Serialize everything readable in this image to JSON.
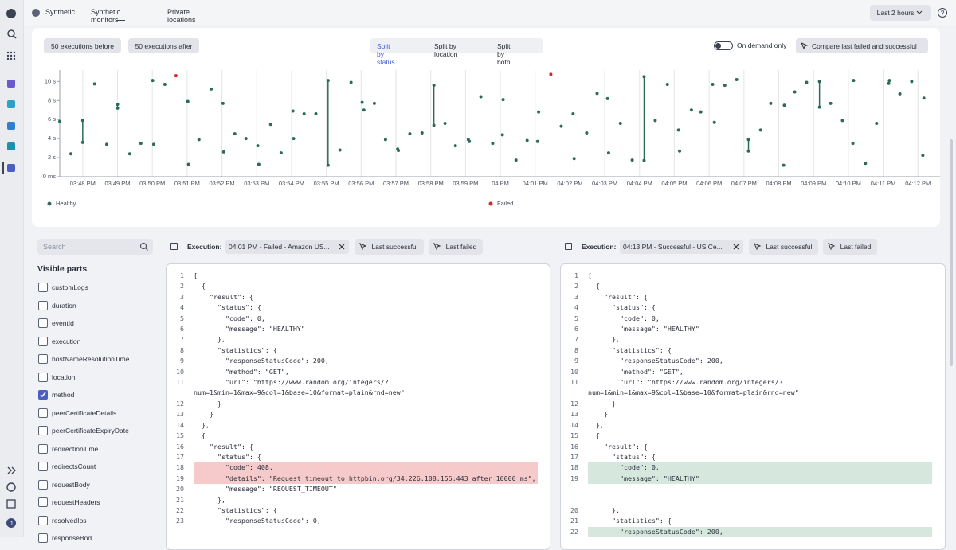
{
  "nav": {
    "tabs": [
      "Synthetic",
      "Synthetic monitors",
      "Private locations"
    ],
    "active_tab": 1,
    "timeframe": "Last 2 hours",
    "help": "?",
    "user_initial": "J"
  },
  "toolbar": {
    "before": "50 executions before",
    "after": "50 executions after",
    "split": [
      "Split by status",
      "Split by location",
      "Split by both"
    ],
    "active_split": 0,
    "toggle": "On demand only",
    "toggle_on": false,
    "compare": "Compare last failed and successful"
  },
  "chart_data": {
    "type": "scatter",
    "legend": "bottom",
    "grid": "x",
    "xlim": [
      47.34,
      72.2
    ],
    "xticks": [
      {
        "value": 48,
        "label": "03:48 PM"
      },
      {
        "value": 49,
        "label": "03:49 PM"
      },
      {
        "value": 50,
        "label": "03:50 PM"
      },
      {
        "value": 51,
        "label": "03:51 PM"
      },
      {
        "value": 52,
        "label": "03:52 PM"
      },
      {
        "value": 53,
        "label": "03:53 PM"
      },
      {
        "value": 54,
        "label": "03:54 PM"
      },
      {
        "value": 55,
        "label": "03:55 PM"
      },
      {
        "value": 56,
        "label": "03:56 PM"
      },
      {
        "value": 57,
        "label": "03:57 PM"
      },
      {
        "value": 58,
        "label": "03:58 PM"
      },
      {
        "value": 59,
        "label": "03:59 PM"
      },
      {
        "value": 60,
        "label": "04 PM"
      },
      {
        "value": 61,
        "label": "04:01 PM"
      },
      {
        "value": 62,
        "label": "04:02 PM"
      },
      {
        "value": 63,
        "label": "04:03 PM"
      },
      {
        "value": 64,
        "label": "04:04 PM"
      },
      {
        "value": 65,
        "label": "04:05 PM"
      },
      {
        "value": 66,
        "label": "04:06 PM"
      },
      {
        "value": 67,
        "label": "04:07 PM"
      },
      {
        "value": 68,
        "label": "04:08 PM"
      },
      {
        "value": 69,
        "label": "04:09 PM"
      },
      {
        "value": 70,
        "label": "04:10 PM"
      },
      {
        "value": 71,
        "label": "04:11 PM"
      },
      {
        "value": 72,
        "label": "04:12 PM"
      }
    ],
    "ylim": [
      0,
      11.2
    ],
    "yticks": [
      {
        "value": 0,
        "label": "0 ms"
      },
      {
        "value": 2,
        "label": "2 s"
      },
      {
        "value": 4,
        "label": "4 s"
      },
      {
        "value": 6,
        "label": "6 s"
      },
      {
        "value": 8,
        "label": "8 s"
      },
      {
        "value": 10,
        "label": "10 s"
      }
    ],
    "series": [
      {
        "name": "Healthy",
        "color": "#2d6b57",
        "x": [
          47.34,
          47.66,
          48.0,
          48.0,
          48.34,
          48.69,
          49.0,
          49.0,
          49.35,
          49.67,
          50.01,
          50.04,
          50.36,
          51.02,
          51.04,
          51.34,
          51.69,
          52.03,
          52.05,
          52.37,
          52.69,
          53.03,
          53.06,
          53.4,
          53.7,
          54.04,
          54.06,
          54.36,
          54.7,
          55.05,
          55.05,
          55.39,
          55.71,
          56.03,
          56.08,
          56.38,
          56.7,
          57.05,
          57.07,
          57.4,
          57.75,
          58.09,
          58.09,
          58.41,
          58.71,
          59.08,
          59.11,
          59.44,
          59.78,
          60.06,
          60.08,
          60.45,
          60.77,
          61.07,
          61.1,
          61.75,
          62.09,
          62.12,
          62.48,
          62.78,
          63.08,
          63.11,
          63.45,
          63.79,
          64.13,
          64.13,
          64.45,
          64.8,
          65.12,
          65.15,
          65.49,
          65.76,
          66.1,
          66.15,
          66.45,
          66.79,
          67.13,
          67.13,
          67.48,
          67.77,
          68.14,
          68.16,
          68.46,
          68.8,
          69.17,
          69.17,
          69.49,
          69.83,
          70.15,
          70.13,
          70.49,
          70.81,
          71.16,
          71.18,
          71.48,
          71.82,
          72.17,
          72.14
        ],
        "values": [
          5.8,
          2.4,
          5.9,
          3.6,
          9.75,
          3.4,
          7.6,
          7.2,
          2.4,
          3.5,
          10.1,
          3.4,
          9.7,
          7.9,
          1.3,
          3.9,
          9.2,
          7.7,
          2.6,
          4.5,
          4.0,
          3.25,
          1.3,
          5.5,
          2.5,
          6.9,
          4.0,
          6.6,
          6.6,
          10.1,
          1.2,
          2.8,
          9.9,
          7.8,
          7.0,
          7.7,
          3.9,
          2.9,
          2.75,
          4.5,
          4.6,
          9.6,
          5.4,
          5.6,
          3.25,
          3.9,
          3.7,
          8.4,
          3.5,
          4.4,
          8.1,
          1.75,
          3.8,
          3.7,
          6.8,
          5.3,
          6.6,
          1.9,
          4.6,
          8.75,
          8.2,
          2.5,
          5.6,
          1.75,
          10.5,
          1.7,
          5.9,
          9.7,
          4.9,
          2.7,
          7.0,
          6.8,
          9.7,
          5.7,
          9.6,
          10.2,
          3.9,
          2.7,
          4.9,
          7.7,
          1.2,
          7.5,
          8.9,
          9.9,
          10.0,
          7.3,
          7.7,
          5.9,
          10.1,
          3.5,
          1.4,
          5.6,
          9.8,
          10.1,
          8.7,
          10.0,
          8.25,
          2.25
        ]
      },
      {
        "name": "Failed",
        "color": "#d8242b",
        "x": [
          50.68,
          61.45
        ],
        "values": [
          10.6,
          10.75
        ]
      }
    ]
  },
  "sidebar": {
    "search_placeholder": "Search",
    "heading": "Visible parts",
    "parts": [
      {
        "label": "customLogs",
        "checked": false
      },
      {
        "label": "duration",
        "checked": false
      },
      {
        "label": "eventId",
        "checked": false
      },
      {
        "label": "execution",
        "checked": false
      },
      {
        "label": "hostNameResolutionTime",
        "checked": false
      },
      {
        "label": "location",
        "checked": false
      },
      {
        "label": "method",
        "checked": true
      },
      {
        "label": "peerCertificateDetails",
        "checked": false
      },
      {
        "label": "peerCertificateExpiryDate",
        "checked": false
      },
      {
        "label": "redirectionTime",
        "checked": false
      },
      {
        "label": "redirectsCount",
        "checked": false
      },
      {
        "label": "requestBody",
        "checked": false
      },
      {
        "label": "requestHeaders",
        "checked": false
      },
      {
        "label": "resolvedIps",
        "checked": false
      },
      {
        "label": "responseBod",
        "checked": false
      }
    ]
  },
  "panes": [
    {
      "label": "Execution:",
      "selection": "04:01 PM - Failed - Amazon US...",
      "buttons": [
        "Last successful",
        "Last failed"
      ],
      "lines": [
        {
          "n": 1,
          "text": "["
        },
        {
          "n": 2,
          "text": "  {"
        },
        {
          "n": 3,
          "text": "    \"result\": {"
        },
        {
          "n": 4,
          "text": "      \"status\": {"
        },
        {
          "n": 5,
          "text": "        \"code\": 0,"
        },
        {
          "n": 6,
          "text": "        \"message\": \"HEALTHY\""
        },
        {
          "n": 7,
          "text": "      },"
        },
        {
          "n": 8,
          "text": "      \"statistics\": {"
        },
        {
          "n": 9,
          "text": "        \"responseStatusCode\": 200,"
        },
        {
          "n": 10,
          "text": "        \"method\": \"GET\","
        },
        {
          "n": 11,
          "text": "        \"url\": \"https://www.random.org/integers/?num=1&min=1&max=9&col=1&base=10&format=plain&rnd=new\""
        },
        {
          "n": 12,
          "text": "      }"
        },
        {
          "n": 13,
          "text": "    }"
        },
        {
          "n": 14,
          "text": "  },"
        },
        {
          "n": 15,
          "text": "  {"
        },
        {
          "n": 16,
          "text": "    \"result\": {"
        },
        {
          "n": 17,
          "text": "      \"status\": {"
        },
        {
          "n": 18,
          "text": "        \"code\": 408,",
          "change": "removed"
        },
        {
          "n": 19,
          "text": "        \"details\": \"Request timeout to httpbin.org/34.226.108.155:443 after 10000 ms\",",
          "change": "removed"
        },
        {
          "n": 20,
          "text": "        \"message\": \"REQUEST_TIMEOUT\""
        },
        {
          "n": 21,
          "text": "      },"
        },
        {
          "n": 22,
          "text": "      \"statistics\": {"
        },
        {
          "n": 23,
          "text": "        \"responseStatusCode\": 0,"
        }
      ]
    },
    {
      "label": "Execution:",
      "selection": "04:13 PM - Successful - US Ce...",
      "buttons": [
        "Last successful",
        "Last failed"
      ],
      "lines": [
        {
          "n": 1,
          "text": "["
        },
        {
          "n": 2,
          "text": "  {"
        },
        {
          "n": 3,
          "text": "    \"result\": {"
        },
        {
          "n": 4,
          "text": "      \"status\": {"
        },
        {
          "n": 5,
          "text": "        \"code\": 0,"
        },
        {
          "n": 6,
          "text": "        \"message\": \"HEALTHY\""
        },
        {
          "n": 7,
          "text": "      },"
        },
        {
          "n": 8,
          "text": "      \"statistics\": {"
        },
        {
          "n": 9,
          "text": "        \"responseStatusCode\": 200,"
        },
        {
          "n": 10,
          "text": "        \"method\": \"GET\","
        },
        {
          "n": 11,
          "text": "        \"url\": \"https://www.random.org/integers/?num=1&min=1&max=9&col=1&base=10&format=plain&rnd=new\""
        },
        {
          "n": 12,
          "text": "      }"
        },
        {
          "n": 13,
          "text": "    }"
        },
        {
          "n": 14,
          "text": "  },"
        },
        {
          "n": 15,
          "text": "  {"
        },
        {
          "n": 16,
          "text": "    \"result\": {"
        },
        {
          "n": 17,
          "text": "      \"status\": {"
        },
        {
          "n": 18,
          "text": "        \"code\": 0,",
          "change": "added"
        },
        {
          "n": 19,
          "text": "        \"message\": \"HEALTHY\"",
          "change": "added",
          "gap_rows": 2
        },
        {
          "n": 20,
          "text": "      },"
        },
        {
          "n": 21,
          "text": "      \"statistics\": {"
        },
        {
          "n": 22,
          "text": "        \"responseStatusCode\": 200,",
          "change": "added"
        }
      ]
    }
  ]
}
